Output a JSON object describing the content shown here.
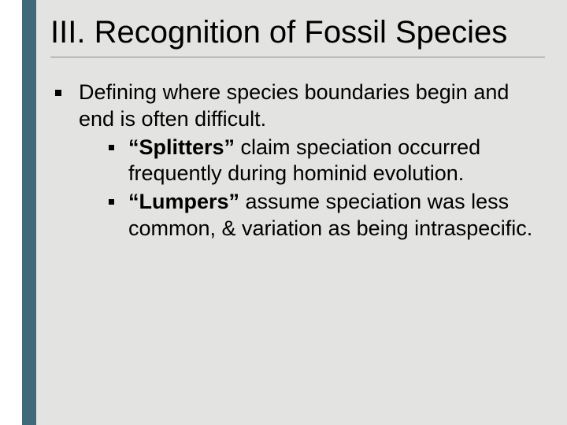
{
  "slide": {
    "background_color": "#e3e4e2",
    "left_bar_color": "#ffffff",
    "accent_color": "#40697a",
    "title": "III. Recognition of  Fossil Species",
    "title_fontsize": 40,
    "body_fontsize": 27,
    "rule_color": "#8a8a88",
    "main_text": "Defining where species boundaries begin and end is often difficult.",
    "sub1_bold": "“Splitters”",
    "sub1_rest": " claim speciation occurred frequently during hominid evolution.",
    "sub2_bold": "“Lumpers”",
    "sub2_rest": " assume speciation was less common, & variation as being intraspecific."
  }
}
